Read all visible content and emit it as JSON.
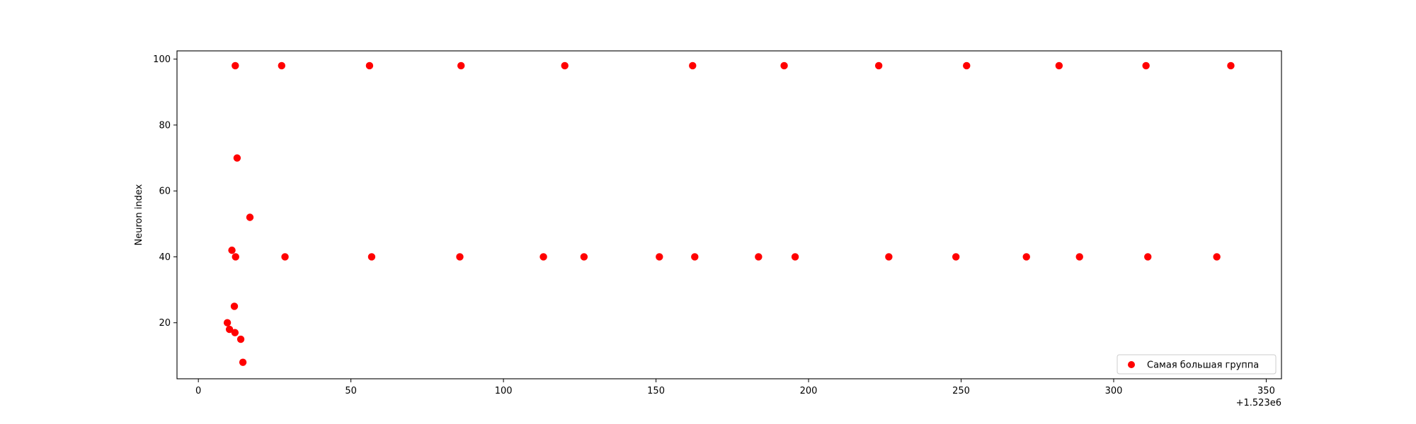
{
  "chart_data": {
    "type": "scatter",
    "title": "",
    "xlabel": "",
    "ylabel": "Neuron index",
    "x_offset_label": "+1.523e6",
    "xlim": [
      -7,
      355
    ],
    "ylim": [
      3,
      102.5
    ],
    "xticks": [
      0,
      50,
      100,
      150,
      200,
      250,
      300,
      350
    ],
    "yticks": [
      20,
      40,
      60,
      80,
      100
    ],
    "grid": false,
    "legend_position": "lower right",
    "series": [
      {
        "name": "Самая большая группа",
        "color": "#ff0000",
        "marker": "circle",
        "points": [
          {
            "x": 9.5,
            "y": 20
          },
          {
            "x": 10.2,
            "y": 18
          },
          {
            "x": 11.0,
            "y": 42
          },
          {
            "x": 11.8,
            "y": 25
          },
          {
            "x": 12.0,
            "y": 17
          },
          {
            "x": 12.1,
            "y": 98
          },
          {
            "x": 12.2,
            "y": 40
          },
          {
            "x": 12.7,
            "y": 70
          },
          {
            "x": 13.9,
            "y": 15
          },
          {
            "x": 14.6,
            "y": 8
          },
          {
            "x": 16.9,
            "y": 52
          },
          {
            "x": 27.3,
            "y": 98
          },
          {
            "x": 28.4,
            "y": 40
          },
          {
            "x": 56.1,
            "y": 98
          },
          {
            "x": 56.8,
            "y": 40
          },
          {
            "x": 85.7,
            "y": 40
          },
          {
            "x": 86.1,
            "y": 98
          },
          {
            "x": 113.1,
            "y": 40
          },
          {
            "x": 120.1,
            "y": 98
          },
          {
            "x": 126.4,
            "y": 40
          },
          {
            "x": 151.1,
            "y": 40
          },
          {
            "x": 162.0,
            "y": 98
          },
          {
            "x": 162.7,
            "y": 40
          },
          {
            "x": 183.6,
            "y": 40
          },
          {
            "x": 192.0,
            "y": 98
          },
          {
            "x": 195.6,
            "y": 40
          },
          {
            "x": 223.0,
            "y": 98
          },
          {
            "x": 226.3,
            "y": 40
          },
          {
            "x": 248.3,
            "y": 40
          },
          {
            "x": 251.8,
            "y": 98
          },
          {
            "x": 271.4,
            "y": 40
          },
          {
            "x": 282.1,
            "y": 98
          },
          {
            "x": 288.8,
            "y": 40
          },
          {
            "x": 310.6,
            "y": 98
          },
          {
            "x": 311.2,
            "y": 40
          },
          {
            "x": 333.8,
            "y": 40
          },
          {
            "x": 338.4,
            "y": 98
          }
        ]
      }
    ]
  }
}
